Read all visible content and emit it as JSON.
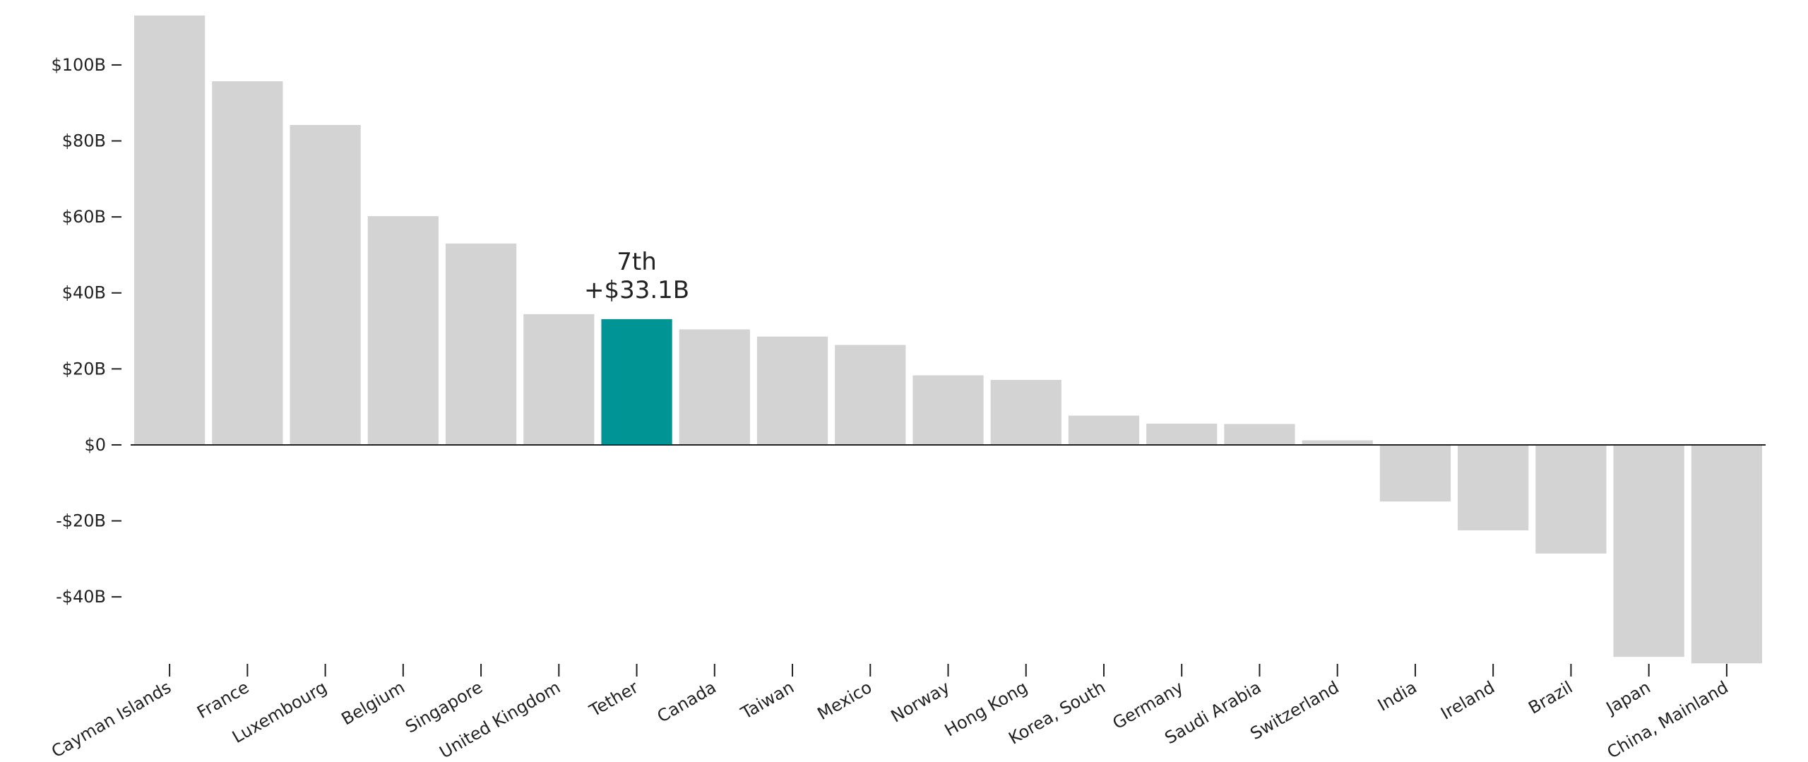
{
  "chart_data": {
    "type": "bar",
    "categories": [
      "Cayman Islands",
      "France",
      "Luxembourg",
      "Belgium",
      "Singapore",
      "United Kingdom",
      "Tether",
      "Canada",
      "Taiwan",
      "Mexico",
      "Norway",
      "Hong Kong",
      "Korea, South",
      "Germany",
      "Saudi Arabia",
      "Switzerland",
      "India",
      "Ireland",
      "Brazil",
      "Japan",
      "China, Mainland"
    ],
    "values": [
      113,
      95.7,
      84.2,
      60.2,
      53,
      34.4,
      33.1,
      30.4,
      28.5,
      26.3,
      18.3,
      17.1,
      7.7,
      5.6,
      5.5,
      1.2,
      -14.9,
      -22.5,
      -28.6,
      -55.8,
      -57.5
    ],
    "ylim": [
      -58,
      113
    ],
    "yticks": [
      -40,
      -20,
      0,
      20,
      40,
      60,
      80,
      100
    ],
    "ytick_labels": [
      "-$40B",
      "-$20B",
      "$0",
      "$20B",
      "$40B",
      "$60B",
      "$80B",
      "$100B"
    ],
    "highlight_index": 6,
    "highlight_annotation": [
      "7th",
      "+$33.1B"
    ],
    "colors": {
      "bar": "#d3d3d3",
      "highlight": "#009494",
      "axis": "#222222"
    }
  }
}
